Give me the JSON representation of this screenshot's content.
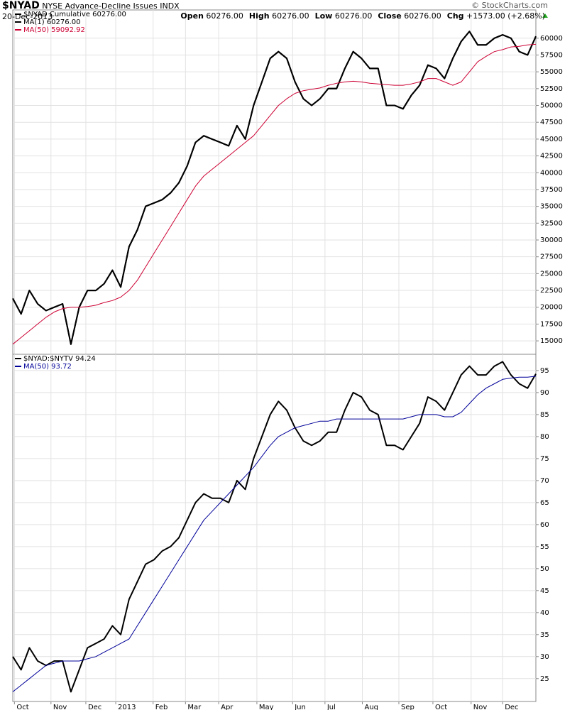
{
  "header": {
    "symbol": "$NYAD",
    "name": "NYSE Advance-Decline Issues",
    "exchange": "INDX",
    "date": "20-Dec-2013",
    "credit": "© StockCharts.com",
    "stats": [
      {
        "label": "Open",
        "value": "60276.00"
      },
      {
        "label": "High",
        "value": "60276.00"
      },
      {
        "label": "Low",
        "value": "60276.00"
      },
      {
        "label": "Close",
        "value": "60276.00"
      },
      {
        "label": "Chg",
        "value": "+1573.00 (+2.68%)"
      }
    ]
  },
  "chart_data": [
    {
      "type": "line",
      "grid": true,
      "x": [
        0,
        1,
        2,
        3,
        4,
        5,
        6,
        7,
        8,
        9,
        10,
        11,
        12,
        13,
        14,
        15,
        16,
        17,
        18,
        19,
        20,
        21,
        22,
        23,
        24,
        25,
        26,
        27,
        28,
        29,
        30,
        31,
        32,
        33,
        34,
        35,
        36,
        37,
        38,
        39,
        40,
        41,
        42,
        43,
        44,
        45,
        46,
        47,
        48,
        49,
        50,
        51,
        52,
        53,
        54,
        55,
        56,
        57,
        58,
        59,
        60,
        61,
        62,
        63
      ],
      "xlim": [
        0,
        63
      ],
      "xticks": [
        {
          "value": 0.2,
          "label": "Oct"
        },
        {
          "value": 4.6,
          "label": "Nov"
        },
        {
          "value": 8.8,
          "label": "Dec"
        },
        {
          "value": 12.4,
          "label": "2013"
        },
        {
          "value": 16.9,
          "label": "Feb"
        },
        {
          "value": 20.8,
          "label": "Mar"
        },
        {
          "value": 24.8,
          "label": "Apr"
        },
        {
          "value": 29.4,
          "label": "May"
        },
        {
          "value": 33.7,
          "label": "Jun"
        },
        {
          "value": 37.6,
          "label": "Jul"
        },
        {
          "value": 42.1,
          "label": "Aug"
        },
        {
          "value": 46.5,
          "label": "Sep"
        },
        {
          "value": 50.6,
          "label": "Oct"
        },
        {
          "value": 55.2,
          "label": "Nov"
        },
        {
          "value": 59.0,
          "label": "Dec"
        }
      ],
      "ylim": [
        12900,
        64200
      ],
      "yticks": [
        15000,
        17500,
        20000,
        22500,
        25000,
        27500,
        30000,
        32500,
        35000,
        37500,
        40000,
        42500,
        45000,
        47500,
        50000,
        52500,
        55000,
        57500,
        60000
      ],
      "series": [
        {
          "name": "$NYAD  Cumulative 60276.00",
          "color": "#000000",
          "line_width": 2,
          "values": [
            21300,
            19000,
            22500,
            20500,
            19500,
            20000,
            20500,
            14500,
            20000,
            22500,
            22500,
            23500,
            25500,
            23000,
            29000,
            31500,
            35000,
            35500,
            36000,
            37000,
            38500,
            41000,
            44500,
            45500,
            45000,
            44500,
            44000,
            47000,
            45000,
            50000,
            53500,
            57000,
            58000,
            57000,
            53500,
            51000,
            50000,
            51000,
            52500,
            52500,
            55500,
            58000,
            57000,
            55500,
            55500,
            50000,
            50000,
            49500,
            51500,
            53000,
            56000,
            55500,
            54000,
            57000,
            59500,
            61000,
            59000,
            59000,
            60000,
            60500,
            60000,
            58000,
            57500,
            60276
          ]
        },
        {
          "name": "MA(1) 60276.00",
          "color": "#000000",
          "line_width": 2,
          "values": [
            21300,
            19000,
            22500,
            20500,
            19500,
            20000,
            20500,
            14500,
            20000,
            22500,
            22500,
            23500,
            25500,
            23000,
            29000,
            31500,
            35000,
            35500,
            36000,
            37000,
            38500,
            41000,
            44500,
            45500,
            45000,
            44500,
            44000,
            47000,
            45000,
            50000,
            53500,
            57000,
            58000,
            57000,
            53500,
            51000,
            50000,
            51000,
            52500,
            52500,
            55500,
            58000,
            57000,
            55500,
            55500,
            50000,
            50000,
            49500,
            51500,
            53000,
            56000,
            55500,
            54000,
            57000,
            59500,
            61000,
            59000,
            59000,
            60000,
            60500,
            60000,
            58000,
            57500,
            60276
          ]
        },
        {
          "name": "MA(50) 59092.92",
          "color": "#cc0033",
          "line_width": 1,
          "values": [
            14500,
            15500,
            16500,
            17500,
            18500,
            19300,
            19800,
            20000,
            20000,
            20100,
            20300,
            20700,
            21000,
            21500,
            22500,
            24000,
            26000,
            28000,
            30000,
            32000,
            34000,
            36000,
            38000,
            39500,
            40500,
            41500,
            42500,
            43500,
            44500,
            45500,
            47000,
            48500,
            50000,
            51000,
            51800,
            52200,
            52400,
            52600,
            53000,
            53300,
            53500,
            53600,
            53500,
            53300,
            53200,
            53100,
            53000,
            53000,
            53200,
            53500,
            54000,
            54000,
            53500,
            53000,
            53500,
            55000,
            56500,
            57300,
            58000,
            58300,
            58700,
            58800,
            59000,
            59092.92
          ]
        }
      ]
    },
    {
      "type": "line",
      "grid": true,
      "x": [
        0,
        1,
        2,
        3,
        4,
        5,
        6,
        7,
        8,
        9,
        10,
        11,
        12,
        13,
        14,
        15,
        16,
        17,
        18,
        19,
        20,
        21,
        22,
        23,
        24,
        25,
        26,
        27,
        28,
        29,
        30,
        31,
        32,
        33,
        34,
        35,
        36,
        37,
        38,
        39,
        40,
        41,
        42,
        43,
        44,
        45,
        46,
        47,
        48,
        49,
        50,
        51,
        52,
        53,
        54,
        55,
        56,
        57,
        58,
        59,
        60,
        61,
        62,
        63
      ],
      "xlim": [
        0,
        63
      ],
      "xticks": [
        {
          "value": 0.2,
          "label": "Oct"
        },
        {
          "value": 4.6,
          "label": "Nov"
        },
        {
          "value": 8.8,
          "label": "Dec"
        },
        {
          "value": 12.4,
          "label": "2013"
        },
        {
          "value": 16.9,
          "label": "Feb"
        },
        {
          "value": 20.8,
          "label": "Mar"
        },
        {
          "value": 24.8,
          "label": "Apr"
        },
        {
          "value": 29.4,
          "label": "May"
        },
        {
          "value": 33.7,
          "label": "Jun"
        },
        {
          "value": 37.6,
          "label": "Jul"
        },
        {
          "value": 42.1,
          "label": "Aug"
        },
        {
          "value": 46.5,
          "label": "Sep"
        },
        {
          "value": 50.6,
          "label": "Oct"
        },
        {
          "value": 55.2,
          "label": "Nov"
        },
        {
          "value": 59.0,
          "label": "Dec"
        }
      ],
      "ylim": [
        19.8,
        98.7
      ],
      "yticks": [
        25,
        30,
        35,
        40,
        45,
        50,
        55,
        60,
        65,
        70,
        75,
        80,
        85,
        90,
        95
      ],
      "series": [
        {
          "name": "$NYAD:$NYTV 94.24",
          "color": "#000000",
          "line_width": 2,
          "values": [
            30,
            27,
            32,
            29,
            28,
            29,
            29,
            22,
            27,
            32,
            33,
            34,
            37,
            35,
            43,
            47,
            51,
            52,
            54,
            55,
            57,
            61,
            65,
            67,
            66,
            66,
            65,
            70,
            68,
            75,
            80,
            85,
            88,
            86,
            82,
            79,
            78,
            79,
            81,
            81,
            86,
            90,
            89,
            86,
            85,
            78,
            78,
            77,
            80,
            83,
            89,
            88,
            86,
            90,
            94,
            96,
            94,
            94,
            96,
            97,
            94,
            92,
            91,
            94.24
          ]
        },
        {
          "name": "MA(50) 93.72",
          "color": "#000099",
          "line_width": 1,
          "values": [
            22,
            23.5,
            25,
            26.5,
            28,
            28.5,
            29,
            29,
            29,
            29.5,
            30,
            31,
            32,
            33,
            34,
            37,
            40,
            43,
            46,
            49,
            52,
            55,
            58,
            61,
            63,
            65,
            67,
            69,
            71,
            73,
            75.5,
            78,
            80,
            81,
            82,
            82.5,
            83,
            83.5,
            83.5,
            84,
            84,
            84,
            84,
            84,
            84,
            84,
            84,
            84,
            84.5,
            85,
            85,
            85,
            84.5,
            84.5,
            85.5,
            87.5,
            89.5,
            91,
            92,
            93,
            93.3,
            93.5,
            93.5,
            93.72
          ]
        }
      ]
    }
  ]
}
